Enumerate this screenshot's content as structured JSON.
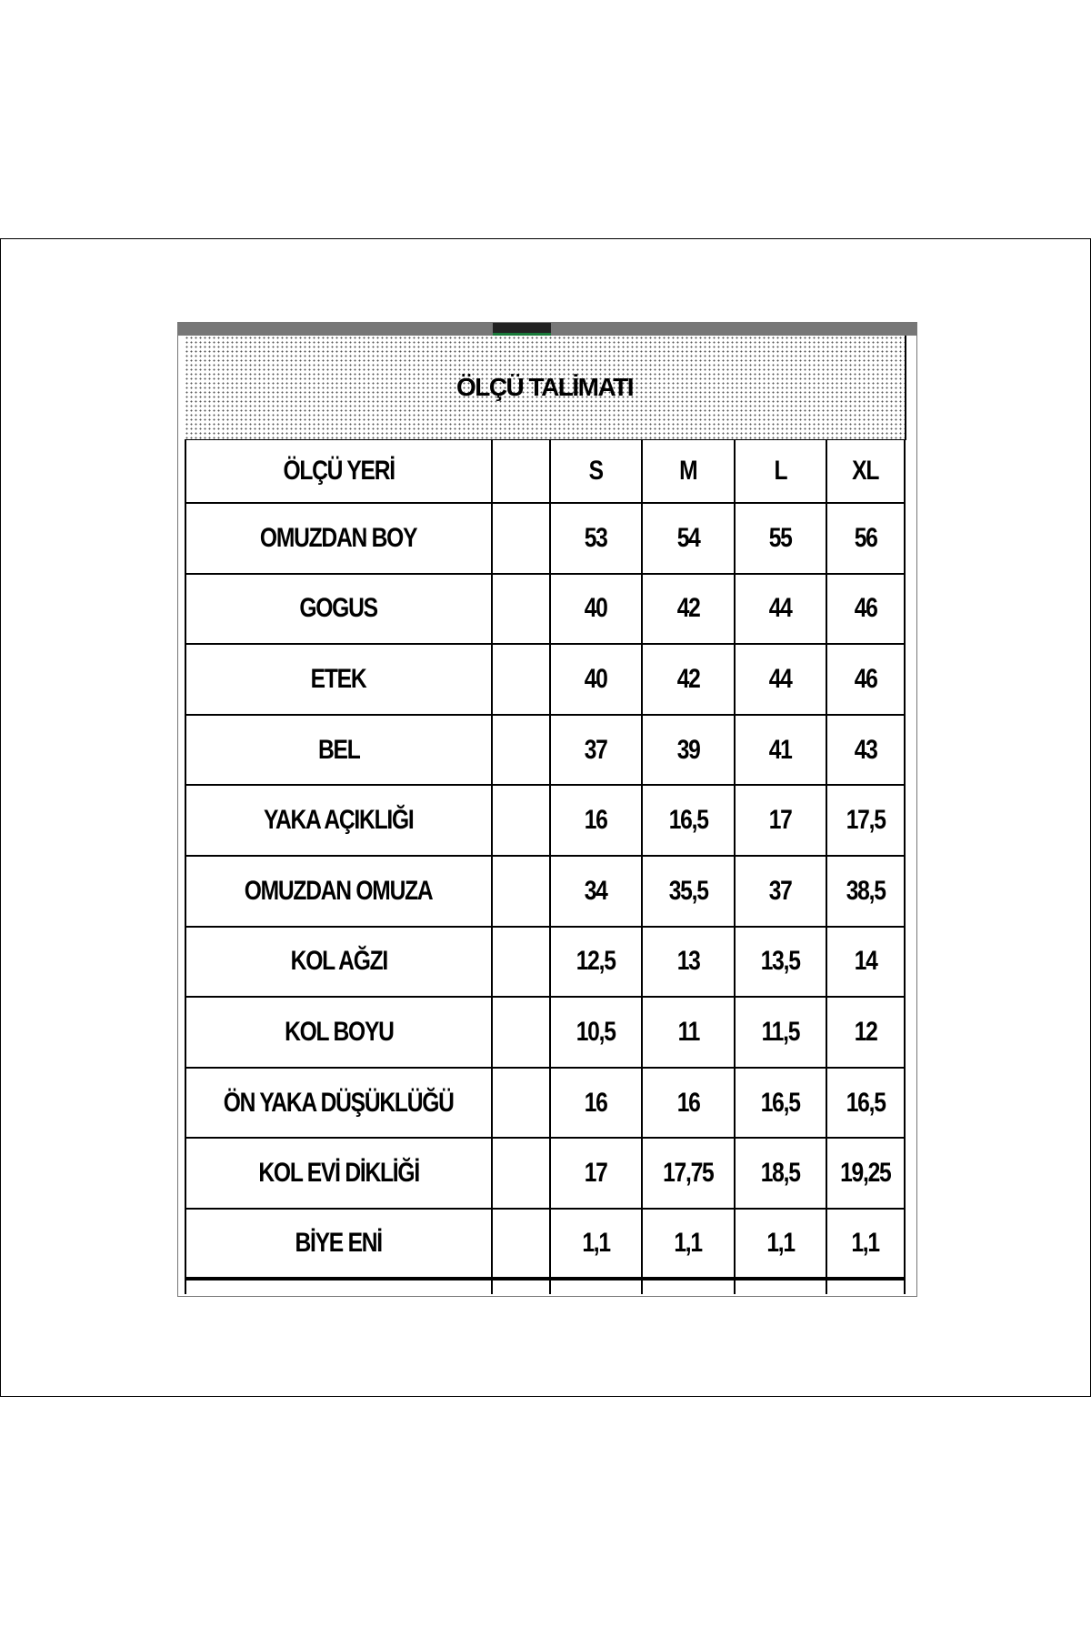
{
  "header": {
    "title": "ÖLÇÜ TALİMATI"
  },
  "table": {
    "label_header": "ÖLÇÜ YERİ",
    "sizes": [
      "S",
      "M",
      "L",
      "XL"
    ],
    "rows": [
      {
        "label": "OMUZDAN BOY",
        "values": [
          "53",
          "54",
          "55",
          "56"
        ]
      },
      {
        "label": "GOGUS",
        "values": [
          "40",
          "42",
          "44",
          "46"
        ]
      },
      {
        "label": "ETEK",
        "values": [
          "40",
          "42",
          "44",
          "46"
        ]
      },
      {
        "label": "BEL",
        "values": [
          "37",
          "39",
          "41",
          "43"
        ]
      },
      {
        "label": "YAKA AÇIKLIĞI",
        "values": [
          "16",
          "16,5",
          "17",
          "17,5"
        ]
      },
      {
        "label": "OMUZDAN OMUZA",
        "values": [
          "34",
          "35,5",
          "37",
          "38,5"
        ]
      },
      {
        "label": "KOL AĞZI",
        "values": [
          "12,5",
          "13",
          "13,5",
          "14"
        ]
      },
      {
        "label": "KOL BOYU",
        "values": [
          "10,5",
          "11",
          "11,5",
          "12"
        ]
      },
      {
        "label": "ÖN YAKA DÜŞÜKLÜĞÜ",
        "values": [
          "16",
          "16",
          "16,5",
          "16,5"
        ]
      },
      {
        "label": "KOL EVİ DİKLİĞİ",
        "values": [
          "17",
          "17,75",
          "18,5",
          "19,25"
        ]
      },
      {
        "label": "BİYE ENİ",
        "values": [
          "1,1",
          "1,1",
          "1,1",
          "1,1"
        ]
      }
    ]
  }
}
